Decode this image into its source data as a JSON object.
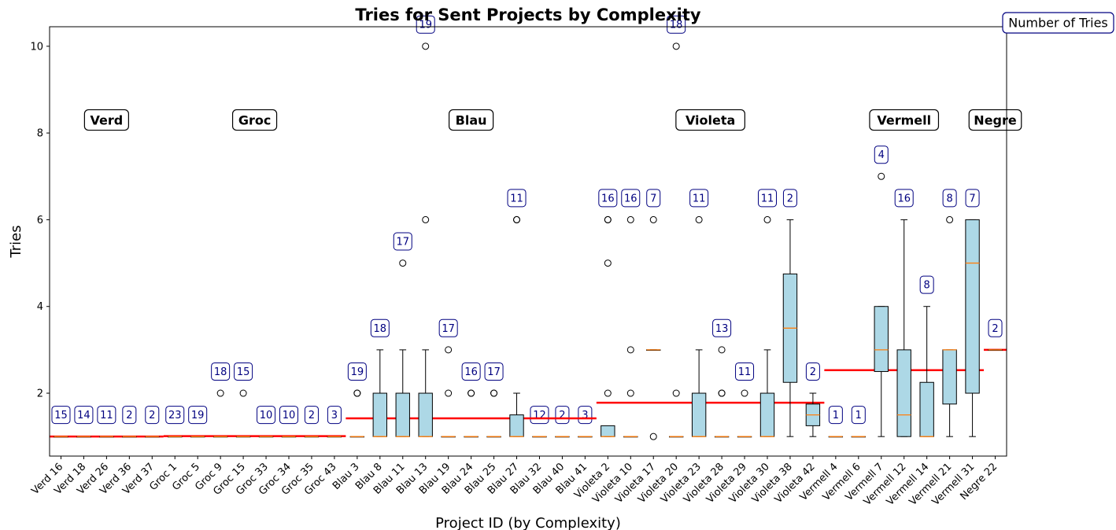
{
  "chart_data": {
    "type": "boxplot",
    "title": "Tries for Sent Projects by Complexity",
    "xlabel": "Project ID (by Complexity)",
    "ylabel": "Tries",
    "ylim": [
      0.55,
      10.45
    ],
    "yticks": [
      2,
      4,
      6,
      8,
      10
    ],
    "grid": false,
    "legend_label": "Number of Tries",
    "legend_position": "top-right",
    "colors": {
      "box_fill": "#add8e6",
      "median": "#ff7f0e",
      "group_mean": "#ff0000",
      "count_label": "#000080"
    },
    "groups": [
      {
        "name": "Verd",
        "mean": 1.0
      },
      {
        "name": "Groc",
        "mean": 1.01
      },
      {
        "name": "Blau",
        "mean": 1.42
      },
      {
        "name": "Violeta",
        "mean": 1.78
      },
      {
        "name": "Vermell",
        "mean": 2.53
      },
      {
        "name": "Negre",
        "mean": 3.0
      }
    ],
    "projects": [
      {
        "id": "Verd 16",
        "group": "Verd",
        "n": 15,
        "q1": 1,
        "med": 1,
        "q3": 1,
        "wlo": 1,
        "whi": 1,
        "fliers": []
      },
      {
        "id": "Verd 18",
        "group": "Verd",
        "n": 14,
        "q1": 1,
        "med": 1,
        "q3": 1,
        "wlo": 1,
        "whi": 1,
        "fliers": []
      },
      {
        "id": "Verd 26",
        "group": "Verd",
        "n": 11,
        "q1": 1,
        "med": 1,
        "q3": 1,
        "wlo": 1,
        "whi": 1,
        "fliers": []
      },
      {
        "id": "Verd 36",
        "group": "Verd",
        "n": 2,
        "q1": 1,
        "med": 1,
        "q3": 1,
        "wlo": 1,
        "whi": 1,
        "fliers": []
      },
      {
        "id": "Verd 37",
        "group": "Verd",
        "n": 2,
        "q1": 1,
        "med": 1,
        "q3": 1,
        "wlo": 1,
        "whi": 1,
        "fliers": []
      },
      {
        "id": "Groc 1",
        "group": "Groc",
        "n": 23,
        "q1": 1,
        "med": 1,
        "q3": 1,
        "wlo": 1,
        "whi": 1,
        "fliers": []
      },
      {
        "id": "Groc 5",
        "group": "Groc",
        "n": 19,
        "q1": 1,
        "med": 1,
        "q3": 1,
        "wlo": 1,
        "whi": 1,
        "fliers": []
      },
      {
        "id": "Groc 9",
        "group": "Groc",
        "n": 18,
        "q1": 1,
        "med": 1,
        "q3": 1,
        "wlo": 1,
        "whi": 1,
        "fliers": [
          2
        ]
      },
      {
        "id": "Groc 15",
        "group": "Groc",
        "n": 15,
        "q1": 1,
        "med": 1,
        "q3": 1,
        "wlo": 1,
        "whi": 1,
        "fliers": [
          2
        ]
      },
      {
        "id": "Groc 33",
        "group": "Groc",
        "n": 10,
        "q1": 1,
        "med": 1,
        "q3": 1,
        "wlo": 1,
        "whi": 1,
        "fliers": []
      },
      {
        "id": "Groc 34",
        "group": "Groc",
        "n": 10,
        "q1": 1,
        "med": 1,
        "q3": 1,
        "wlo": 1,
        "whi": 1,
        "fliers": []
      },
      {
        "id": "Groc 35",
        "group": "Groc",
        "n": 2,
        "q1": 1,
        "med": 1,
        "q3": 1,
        "wlo": 1,
        "whi": 1,
        "fliers": []
      },
      {
        "id": "Groc 43",
        "group": "Groc",
        "n": 3,
        "q1": 1,
        "med": 1,
        "q3": 1,
        "wlo": 1,
        "whi": 1,
        "fliers": []
      },
      {
        "id": "Blau 3",
        "group": "Blau",
        "n": 19,
        "q1": 1,
        "med": 1,
        "q3": 1,
        "wlo": 1,
        "whi": 1,
        "fliers": [
          2,
          2
        ]
      },
      {
        "id": "Blau 8",
        "group": "Blau",
        "n": 18,
        "q1": 1,
        "med": 1,
        "q3": 2,
        "wlo": 1,
        "whi": 3,
        "fliers": []
      },
      {
        "id": "Blau 11",
        "group": "Blau",
        "n": 17,
        "q1": 1,
        "med": 1,
        "q3": 2,
        "wlo": 1,
        "whi": 3,
        "fliers": [
          5
        ]
      },
      {
        "id": "Blau 13",
        "group": "Blau",
        "n": 19,
        "q1": 1,
        "med": 1,
        "q3": 2,
        "wlo": 1,
        "whi": 3,
        "fliers": [
          6,
          10
        ]
      },
      {
        "id": "Blau 19",
        "group": "Blau",
        "n": 17,
        "q1": 1,
        "med": 1,
        "q3": 1,
        "wlo": 1,
        "whi": 1,
        "fliers": [
          2,
          3
        ]
      },
      {
        "id": "Blau 24",
        "group": "Blau",
        "n": 16,
        "q1": 1,
        "med": 1,
        "q3": 1,
        "wlo": 1,
        "whi": 1,
        "fliers": [
          2,
          2
        ]
      },
      {
        "id": "Blau 25",
        "group": "Blau",
        "n": 17,
        "q1": 1,
        "med": 1,
        "q3": 1,
        "wlo": 1,
        "whi": 1,
        "fliers": [
          2,
          2
        ]
      },
      {
        "id": "Blau 27",
        "group": "Blau",
        "n": 11,
        "q1": 1,
        "med": 1,
        "q3": 1.5,
        "wlo": 1,
        "whi": 2,
        "fliers": [
          6,
          6
        ]
      },
      {
        "id": "Blau 32",
        "group": "Blau",
        "n": 12,
        "q1": 1,
        "med": 1,
        "q3": 1,
        "wlo": 1,
        "whi": 1,
        "fliers": []
      },
      {
        "id": "Blau 40",
        "group": "Blau",
        "n": 2,
        "q1": 1,
        "med": 1,
        "q3": 1,
        "wlo": 1,
        "whi": 1,
        "fliers": []
      },
      {
        "id": "Blau 41",
        "group": "Blau",
        "n": 3,
        "q1": 1,
        "med": 1,
        "q3": 1,
        "wlo": 1,
        "whi": 1,
        "fliers": []
      },
      {
        "id": "Violeta 2",
        "group": "Violeta",
        "n": 16,
        "q1": 1,
        "med": 1,
        "q3": 1.25,
        "wlo": 1,
        "whi": 1,
        "fliers": [
          2,
          5,
          6,
          6
        ]
      },
      {
        "id": "Violeta 10",
        "group": "Violeta",
        "n": 16,
        "q1": 1,
        "med": 1,
        "q3": 1,
        "wlo": 1,
        "whi": 1,
        "fliers": [
          2,
          3,
          6
        ]
      },
      {
        "id": "Violeta 17",
        "group": "Violeta",
        "n": 7,
        "q1": 3,
        "med": 3,
        "q3": 3,
        "wlo": 3,
        "whi": 3,
        "fliers": [
          1,
          6
        ]
      },
      {
        "id": "Violeta 20",
        "group": "Violeta",
        "n": 18,
        "q1": 1,
        "med": 1,
        "q3": 1,
        "wlo": 1,
        "whi": 1,
        "fliers": [
          2,
          10
        ]
      },
      {
        "id": "Violeta 23",
        "group": "Violeta",
        "n": 11,
        "q1": 1,
        "med": 1,
        "q3": 2,
        "wlo": 1,
        "whi": 3,
        "fliers": [
          6
        ]
      },
      {
        "id": "Violeta 28",
        "group": "Violeta",
        "n": 13,
        "q1": 1,
        "med": 1,
        "q3": 1,
        "wlo": 1,
        "whi": 1,
        "fliers": [
          2,
          2,
          3
        ]
      },
      {
        "id": "Violeta 29",
        "group": "Violeta",
        "n": 11,
        "q1": 1,
        "med": 1,
        "q3": 1,
        "wlo": 1,
        "whi": 1,
        "fliers": [
          2
        ]
      },
      {
        "id": "Violeta 30",
        "group": "Violeta",
        "n": 11,
        "q1": 1,
        "med": 1,
        "q3": 2,
        "wlo": 1,
        "whi": 3,
        "fliers": [
          6
        ]
      },
      {
        "id": "Violeta 38",
        "group": "Violeta",
        "n": 2,
        "q1": 2.25,
        "med": 3.5,
        "q3": 4.75,
        "wlo": 1,
        "whi": 6,
        "fliers": []
      },
      {
        "id": "Violeta 42",
        "group": "Violeta",
        "n": 2,
        "q1": 1.25,
        "med": 1.5,
        "q3": 1.75,
        "wlo": 1,
        "whi": 2,
        "fliers": []
      },
      {
        "id": "Vermell 4",
        "group": "Vermell",
        "n": 1,
        "q1": 1,
        "med": 1,
        "q3": 1,
        "wlo": 1,
        "whi": 1,
        "fliers": []
      },
      {
        "id": "Vermell 6",
        "group": "Vermell",
        "n": 1,
        "q1": 1,
        "med": 1,
        "q3": 1,
        "wlo": 1,
        "whi": 1,
        "fliers": []
      },
      {
        "id": "Vermell 7",
        "group": "Vermell",
        "n": 4,
        "q1": 2.5,
        "med": 3,
        "q3": 4,
        "wlo": 1,
        "whi": 4,
        "fliers": [
          7
        ]
      },
      {
        "id": "Vermell 12",
        "group": "Vermell",
        "n": 16,
        "q1": 1,
        "med": 1.5,
        "q3": 3,
        "wlo": 1,
        "whi": 6,
        "fliers": []
      },
      {
        "id": "Vermell 14",
        "group": "Vermell",
        "n": 8,
        "q1": 1,
        "med": 1,
        "q3": 2.25,
        "wlo": 1,
        "whi": 4,
        "fliers": []
      },
      {
        "id": "Vermell 21",
        "group": "Vermell",
        "n": 8,
        "q1": 1.75,
        "med": 3,
        "q3": 3,
        "wlo": 1,
        "whi": 3,
        "fliers": [
          6
        ]
      },
      {
        "id": "Vermell 31",
        "group": "Vermell",
        "n": 7,
        "q1": 2,
        "med": 5,
        "q3": 6,
        "wlo": 1,
        "whi": 6,
        "fliers": []
      },
      {
        "id": "Negre 22",
        "group": "Negre",
        "n": 2,
        "q1": 3,
        "med": 3,
        "q3": 3,
        "wlo": 3,
        "whi": 3,
        "fliers": []
      }
    ]
  }
}
